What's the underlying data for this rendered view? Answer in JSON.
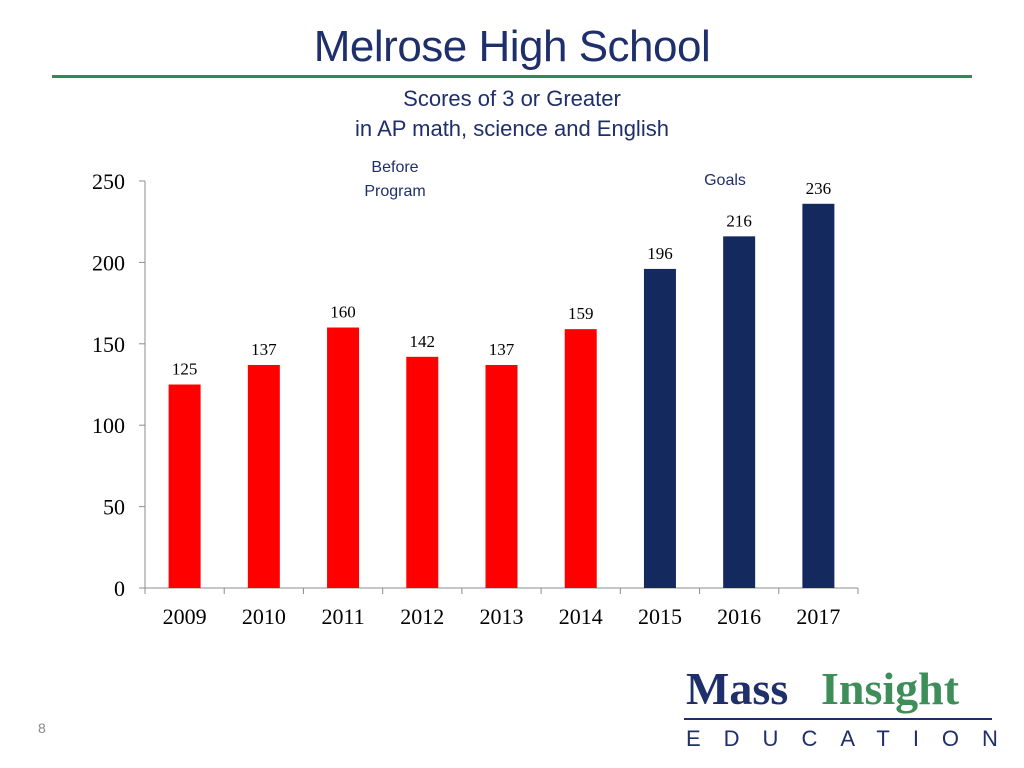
{
  "slide": {
    "title": "Melrose High School",
    "subtitle": "Scores of 3 or Greater",
    "subtitle2": "in AP math, science and English",
    "annotation_before_line1": "Before",
    "annotation_before_line2": "Program",
    "annotation_goals": "Goals",
    "page_number": "8"
  },
  "logo": {
    "word1": "Mass",
    "word2": "Insight",
    "word3": "EDUCATION"
  },
  "colors": {
    "title": "#1f2f6b",
    "rule": "#2e8b57",
    "actual_bar": "#ff0000",
    "goal_bar": "#142a5e"
  },
  "chart_data": {
    "type": "bar",
    "categories": [
      "2009",
      "2010",
      "2011",
      "2012",
      "2013",
      "2014",
      "2015",
      "2016",
      "2017"
    ],
    "values": [
      125,
      137,
      160,
      142,
      137,
      159,
      196,
      216,
      236
    ],
    "bar_groups": [
      "actual",
      "actual",
      "actual",
      "actual",
      "actual",
      "actual",
      "goal",
      "goal",
      "goal"
    ],
    "yticks": [
      0,
      50,
      100,
      150,
      200,
      250
    ],
    "ylim": [
      0,
      250
    ],
    "grid": false,
    "legend": "none",
    "data_labels": true
  }
}
